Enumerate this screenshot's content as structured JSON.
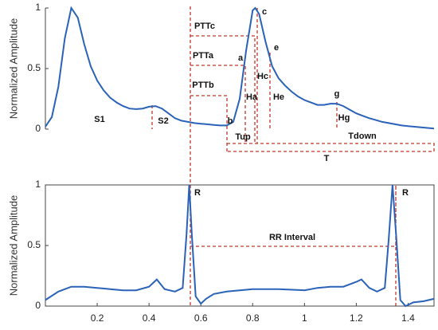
{
  "chart_data": [
    {
      "type": "line",
      "ylabel": "Normalized Amplitude",
      "color": "#2a62b8",
      "xlim": [
        0,
        1.5
      ],
      "ylim": [
        0,
        1
      ],
      "yticks": [
        0,
        0.5,
        1
      ],
      "x": [
        0,
        0.025,
        0.05,
        0.075,
        0.1,
        0.125,
        0.15,
        0.175,
        0.2,
        0.225,
        0.25,
        0.275,
        0.3,
        0.325,
        0.35,
        0.375,
        0.4,
        0.425,
        0.45,
        0.475,
        0.5,
        0.525,
        0.55,
        0.575,
        0.6,
        0.625,
        0.65,
        0.675,
        0.7,
        0.725,
        0.75,
        0.775,
        0.8,
        0.81,
        0.825,
        0.85,
        0.875,
        0.9,
        0.925,
        0.95,
        0.975,
        1.0,
        1.025,
        1.05,
        1.075,
        1.1,
        1.125,
        1.15,
        1.175,
        1.2,
        1.225,
        1.25,
        1.275,
        1.3,
        1.325,
        1.35,
        1.375,
        1.4,
        1.425,
        1.45,
        1.475,
        1.5
      ],
      "values": [
        0.02,
        0.1,
        0.35,
        0.75,
        1.0,
        0.92,
        0.7,
        0.52,
        0.4,
        0.32,
        0.26,
        0.22,
        0.19,
        0.17,
        0.165,
        0.17,
        0.185,
        0.19,
        0.17,
        0.13,
        0.09,
        0.07,
        0.06,
        0.05,
        0.045,
        0.04,
        0.035,
        0.03,
        0.03,
        0.06,
        0.25,
        0.65,
        0.98,
        1.0,
        0.95,
        0.72,
        0.52,
        0.42,
        0.36,
        0.31,
        0.27,
        0.24,
        0.22,
        0.2,
        0.2,
        0.21,
        0.21,
        0.19,
        0.16,
        0.13,
        0.11,
        0.09,
        0.075,
        0.06,
        0.05,
        0.04,
        0.03,
        0.025,
        0.02,
        0.015,
        0.01,
        0.005
      ],
      "annotations": [
        "S1",
        "S2",
        "b",
        "c",
        "a",
        "e",
        "g",
        "PTTc",
        "PTTa",
        "PTTb",
        "Ha",
        "Hc",
        "He",
        "Hg",
        "Tup",
        "Tdown",
        "T"
      ]
    },
    {
      "type": "line",
      "ylabel": "Normalized Amplitude",
      "color": "#2a62b8",
      "xlim": [
        0,
        1.5
      ],
      "ylim": [
        0,
        1
      ],
      "yticks": [
        0,
        0.5,
        1
      ],
      "xticks": [
        0.2,
        0.4,
        0.6,
        0.8,
        1,
        1.2,
        1.4
      ],
      "x": [
        0,
        0.05,
        0.1,
        0.15,
        0.2,
        0.25,
        0.3,
        0.35,
        0.4,
        0.43,
        0.46,
        0.5,
        0.53,
        0.545,
        0.555,
        0.565,
        0.58,
        0.6,
        0.62,
        0.65,
        0.7,
        0.8,
        0.9,
        1.0,
        1.05,
        1.1,
        1.15,
        1.2,
        1.22,
        1.25,
        1.28,
        1.31,
        1.325,
        1.34,
        1.355,
        1.37,
        1.39,
        1.42,
        1.46,
        1.5
      ],
      "values": [
        0.05,
        0.12,
        0.16,
        0.16,
        0.15,
        0.14,
        0.13,
        0.13,
        0.16,
        0.22,
        0.14,
        0.12,
        0.15,
        0.6,
        1.0,
        0.6,
        0.08,
        0.02,
        0.06,
        0.1,
        0.12,
        0.14,
        0.14,
        0.13,
        0.15,
        0.16,
        0.16,
        0.2,
        0.22,
        0.15,
        0.12,
        0.15,
        0.55,
        1.0,
        0.55,
        0.05,
        0.0,
        0.03,
        0.04,
        0.06
      ],
      "annotations": [
        "R",
        "R",
        "RR Interval"
      ]
    }
  ]
}
